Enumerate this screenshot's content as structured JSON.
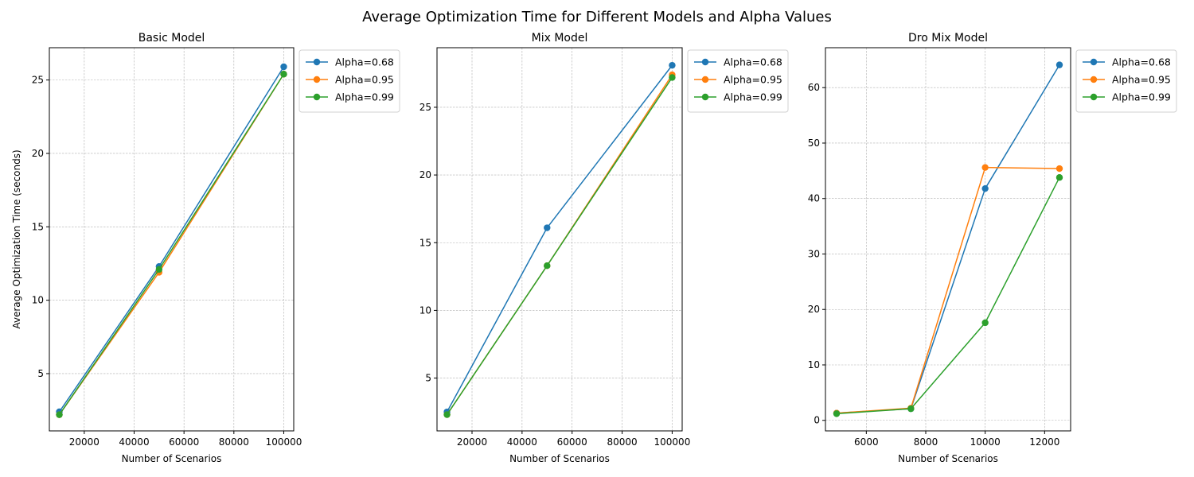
{
  "figure": {
    "title": "Average Optimization Time for Different Models and Alpha Values"
  },
  "colors": {
    "series": [
      "#1f77b4",
      "#ff7f0e",
      "#2ca02c"
    ]
  },
  "chart_data": [
    {
      "type": "line",
      "title": "Basic Model",
      "xlabel": "Number of Scenarios",
      "ylabel": "Average Optimization Time (seconds)",
      "x": [
        10000,
        50000,
        100000
      ],
      "xlim": [
        6000,
        104000
      ],
      "ylim": [
        1.1,
        27.2
      ],
      "xticks": [
        20000,
        40000,
        60000,
        80000,
        100000
      ],
      "yticks": [
        5,
        10,
        15,
        20,
        25
      ],
      "grid": true,
      "legend": "outside-upper-right",
      "series": [
        {
          "name": "Alpha=0.68",
          "values": [
            2.4,
            12.3,
            25.9
          ]
        },
        {
          "name": "Alpha=0.95",
          "values": [
            2.2,
            11.9,
            25.4
          ]
        },
        {
          "name": "Alpha=0.99",
          "values": [
            2.2,
            12.1,
            25.4
          ]
        }
      ]
    },
    {
      "type": "line",
      "title": "Mix Model",
      "xlabel": "Number of Scenarios",
      "ylabel": "",
      "x": [
        10000,
        50000,
        100000
      ],
      "xlim": [
        6000,
        104000
      ],
      "ylim": [
        1.1,
        29.4
      ],
      "xticks": [
        20000,
        40000,
        60000,
        80000,
        100000
      ],
      "yticks": [
        5,
        10,
        15,
        20,
        25
      ],
      "grid": true,
      "legend": "outside-upper-right",
      "series": [
        {
          "name": "Alpha=0.68",
          "values": [
            2.5,
            16.1,
            28.1
          ]
        },
        {
          "name": "Alpha=0.95",
          "values": [
            2.3,
            13.3,
            27.4
          ]
        },
        {
          "name": "Alpha=0.99",
          "values": [
            2.3,
            13.3,
            27.2
          ]
        }
      ]
    },
    {
      "type": "line",
      "title": "Dro Mix Model",
      "xlabel": "Number of Scenarios",
      "ylabel": "",
      "x": [
        5000,
        7500,
        10000,
        12500
      ],
      "xlim": [
        4625,
        12875
      ],
      "ylim": [
        -1.9,
        67.2
      ],
      "xticks": [
        6000,
        8000,
        10000,
        12000
      ],
      "yticks": [
        0,
        10,
        20,
        30,
        40,
        50,
        60
      ],
      "grid": true,
      "legend": "outside-upper-right",
      "series": [
        {
          "name": "Alpha=0.68",
          "values": [
            1.3,
            2.1,
            41.8,
            64.1
          ]
        },
        {
          "name": "Alpha=0.95",
          "values": [
            1.3,
            2.2,
            45.6,
            45.4
          ]
        },
        {
          "name": "Alpha=0.99",
          "values": [
            1.2,
            2.1,
            17.6,
            43.8
          ]
        }
      ]
    }
  ]
}
